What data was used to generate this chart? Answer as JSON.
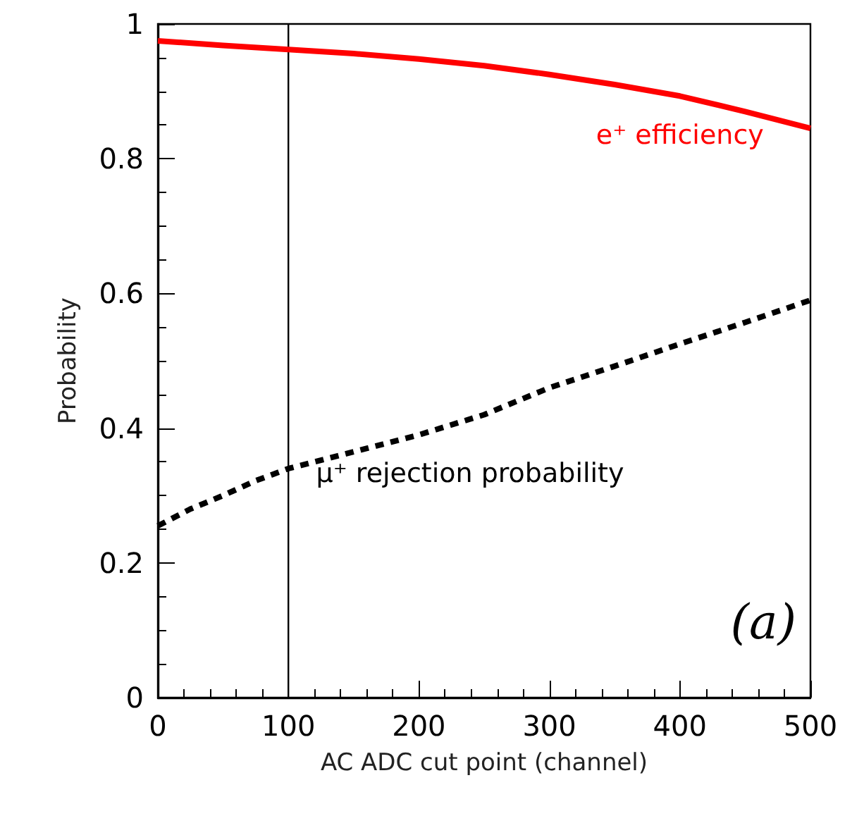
{
  "chart_data": {
    "type": "line",
    "xlabel": "AC ADC cut point (channel)",
    "ylabel": "Probability",
    "xlim": [
      0,
      500
    ],
    "xticks": [
      0,
      100,
      200,
      300,
      400,
      500
    ],
    "ylim": [
      0,
      1
    ],
    "yticks": [
      0,
      0.2,
      0.4,
      0.6,
      0.8,
      1
    ],
    "grid": false,
    "legend": false,
    "marker": "none",
    "ref_lines": [
      {
        "axis": "x",
        "value": 100,
        "color": "#000000",
        "line_style": "solid"
      }
    ],
    "annotations": [
      "(a)"
    ],
    "series": [
      {
        "name": "e⁺ efficiency",
        "color": "#ff0000",
        "line_style": "solid",
        "x": [
          0,
          50,
          100,
          150,
          200,
          250,
          300,
          350,
          400,
          450,
          500
        ],
        "values": [
          0.975,
          0.968,
          0.962,
          0.956,
          0.948,
          0.938,
          0.925,
          0.91,
          0.893,
          0.87,
          0.845
        ]
      },
      {
        "name": "μ⁺ rejection probability",
        "color": "#000000",
        "line_style": "dashed",
        "x": [
          0,
          25,
          50,
          75,
          100,
          150,
          200,
          250,
          300,
          350,
          400,
          450,
          500
        ],
        "values": [
          0.255,
          0.28,
          0.3,
          0.322,
          0.34,
          0.365,
          0.39,
          0.42,
          0.46,
          0.492,
          0.525,
          0.557,
          0.59
        ]
      }
    ]
  }
}
